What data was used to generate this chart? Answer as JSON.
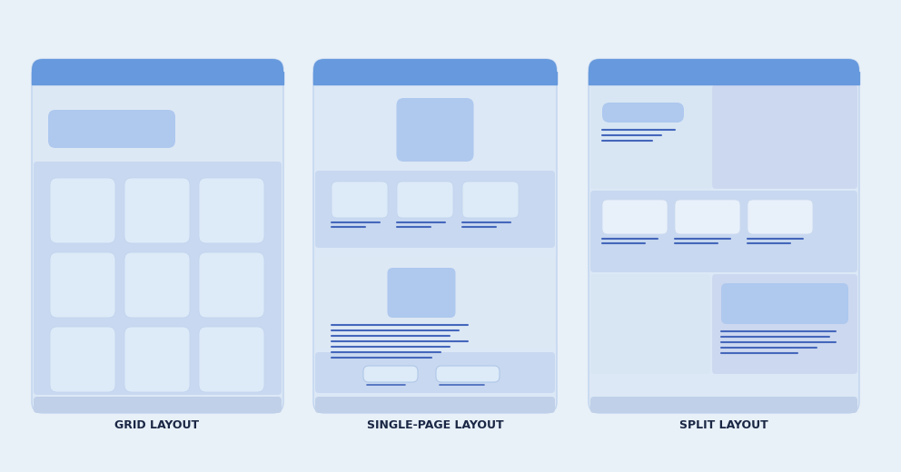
{
  "bg_color": "#e8f0f8",
  "title_color": "#1a2744",
  "titles": [
    "GRID LAYOUT",
    "SINGLE-PAGE LAYOUT",
    "SPLIT LAYOUT"
  ],
  "title_fontsize": 9,
  "card_bg": "#dce8f8",
  "card_border": "#b8ccee",
  "header_bar_color1": "#5588dd",
  "header_bar_color2": "#8ab0ee",
  "panel_bg_light": "#e4edf8",
  "panel_bg_medium": "#c8d8f0",
  "box_white": "#eaf0fa",
  "box_lighter": "#f0f5fc",
  "line_color": "#4466bb",
  "line_color2": "#6688cc"
}
